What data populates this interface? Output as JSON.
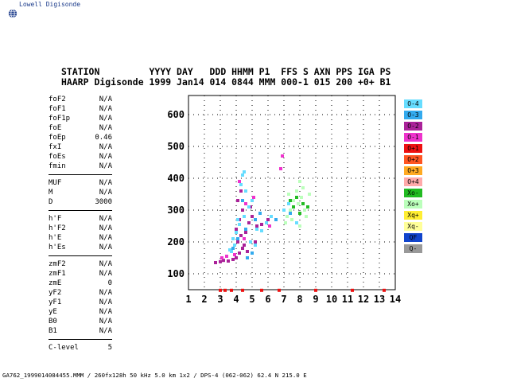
{
  "app": {
    "title": "Lowell Digisonde",
    "logo_icon": "globe-icon"
  },
  "header": {
    "line1": "STATION         YYYY DAY   DDD HHMM P1  FFS S AXN PPS IGA PS",
    "line2": "HAARP Digisonde 1999 Jan14 014 0844 MMM 000-1 015 200 +0+ B1"
  },
  "params": [
    {
      "name": "foF2",
      "value": "N/A"
    },
    {
      "name": "foF1",
      "value": "N/A"
    },
    {
      "name": "foF1p",
      "value": "N/A"
    },
    {
      "name": "foE",
      "value": "N/A"
    },
    {
      "name": "foEp",
      "value": "0.46"
    },
    {
      "name": "fxI",
      "value": "N/A"
    },
    {
      "name": "foEs",
      "value": "N/A"
    },
    {
      "name": "fmin",
      "value": "N/A"
    },
    {
      "sep": true
    },
    {
      "name": "MUF",
      "value": "N/A"
    },
    {
      "name": "M",
      "value": "N/A"
    },
    {
      "name": "D",
      "value": "3000"
    },
    {
      "sep": true
    },
    {
      "name": "h'F",
      "value": "N/A"
    },
    {
      "name": "h'F2",
      "value": "N/A"
    },
    {
      "name": "h'E",
      "value": "N/A"
    },
    {
      "name": "h'Es",
      "value": "N/A"
    },
    {
      "sep": true
    },
    {
      "name": "zmF2",
      "value": "N/A"
    },
    {
      "name": "zmF1",
      "value": "N/A"
    },
    {
      "name": "zmE",
      "value": "0"
    },
    {
      "name": "yF2",
      "value": "N/A"
    },
    {
      "name": "yF1",
      "value": "N/A"
    },
    {
      "name": "yE",
      "value": "N/A"
    },
    {
      "name": "B0",
      "value": "N/A"
    },
    {
      "name": "B1",
      "value": "N/A"
    },
    {
      "sep": true
    },
    {
      "name": "C-level",
      "value": "5"
    }
  ],
  "legend": [
    {
      "label": "O-4",
      "color": "#66ddff"
    },
    {
      "label": "O-3",
      "color": "#33aaee"
    },
    {
      "label": "O-2",
      "color": "#aa2299"
    },
    {
      "label": "O-1",
      "color": "#ee33cc"
    },
    {
      "label": "O+1",
      "color": "#ee1111"
    },
    {
      "label": "O+2",
      "color": "#ff5522"
    },
    {
      "label": "O+3",
      "color": "#ffaa22"
    },
    {
      "label": "O+4",
      "color": "#ffaaaa"
    },
    {
      "label": "Xo-",
      "color": "#22bb22"
    },
    {
      "label": "Xo+",
      "color": "#bbffbb"
    },
    {
      "label": "Xq+",
      "color": "#ffee33"
    },
    {
      "label": "Xq-",
      "color": "#ffff99"
    },
    {
      "label": "QF",
      "color": "#1144cc"
    },
    {
      "label": "Q-",
      "color": "#999999"
    }
  ],
  "footer": "GA762_1999014084455.MMM / 260fx128h 50 kHz 5.0 km 1x2 / DPS-4 (062-062) 62.4 N 215.0 E",
  "chart_data": {
    "type": "scatter",
    "xlim": [
      1,
      14
    ],
    "ylim": [
      50,
      660
    ],
    "xticks": [
      "1",
      "2",
      "3",
      "4",
      "5",
      "6",
      "7",
      "8",
      "9",
      "10",
      "11",
      "12",
      "13",
      "14"
    ],
    "yticks": [
      "100",
      "200",
      "300",
      "400",
      "500",
      "600"
    ],
    "grid": true,
    "series": [
      {
        "color": "#ee1111",
        "points": [
          [
            3.0,
            48
          ],
          [
            3.3,
            48
          ],
          [
            3.7,
            48
          ],
          [
            4.4,
            48
          ],
          [
            5.6,
            48
          ],
          [
            6.7,
            48
          ],
          [
            9.0,
            48
          ],
          [
            11.3,
            48
          ],
          [
            13.3,
            48
          ]
        ]
      },
      {
        "color": "#aa2299",
        "points": [
          [
            2.7,
            135
          ],
          [
            3.0,
            138
          ],
          [
            3.2,
            142
          ],
          [
            3.5,
            140
          ],
          [
            3.8,
            145
          ],
          [
            4.0,
            150
          ],
          [
            4.2,
            165
          ],
          [
            4.4,
            180
          ],
          [
            4.1,
            200
          ],
          [
            4.3,
            220
          ],
          [
            4.0,
            240
          ],
          [
            4.2,
            270
          ],
          [
            4.4,
            300
          ],
          [
            4.1,
            330
          ],
          [
            4.3,
            360
          ],
          [
            4.6,
            230
          ],
          [
            4.8,
            260
          ],
          [
            5.0,
            280
          ],
          [
            5.3,
            250
          ],
          [
            4.9,
            310
          ],
          [
            5.6,
            255
          ],
          [
            6.0,
            270
          ],
          [
            4.5,
            190
          ],
          [
            4.7,
            170
          ],
          [
            5.2,
            200
          ]
        ]
      },
      {
        "color": "#ee33cc",
        "points": [
          [
            3.1,
            150
          ],
          [
            3.4,
            155
          ],
          [
            3.9,
            160
          ],
          [
            4.5,
            210
          ],
          [
            4.6,
            320
          ],
          [
            5.1,
            340
          ],
          [
            4.2,
            390
          ],
          [
            6.1,
            250
          ],
          [
            6.9,
            470
          ],
          [
            6.8,
            430
          ]
        ]
      },
      {
        "color": "#66ddff",
        "points": [
          [
            3.7,
            170
          ],
          [
            3.9,
            190
          ],
          [
            3.8,
            210
          ],
          [
            4.0,
            230
          ],
          [
            4.2,
            255
          ],
          [
            4.5,
            280
          ],
          [
            4.8,
            310
          ],
          [
            5.0,
            330
          ],
          [
            4.6,
            360
          ],
          [
            4.3,
            380
          ],
          [
            4.4,
            410
          ],
          [
            4.5,
            420
          ],
          [
            5.3,
            240
          ],
          [
            5.6,
            235
          ],
          [
            5.9,
            260
          ],
          [
            6.2,
            280
          ],
          [
            7.0,
            300
          ],
          [
            7.3,
            320
          ],
          [
            7.8,
            260
          ],
          [
            4.9,
            200
          ],
          [
            5.2,
            190
          ],
          [
            4.1,
            270
          ],
          [
            3.6,
            175
          ]
        ]
      },
      {
        "color": "#33aaee",
        "points": [
          [
            3.8,
            180
          ],
          [
            4.1,
            210
          ],
          [
            4.6,
            240
          ],
          [
            5.2,
            270
          ],
          [
            4.4,
            330
          ],
          [
            5.5,
            290
          ],
          [
            6.5,
            270
          ],
          [
            7.4,
            290
          ],
          [
            4.7,
            150
          ],
          [
            5.0,
            165
          ]
        ]
      },
      {
        "color": "#bbffbb",
        "points": [
          [
            7.2,
            280
          ],
          [
            7.4,
            300
          ],
          [
            7.6,
            330
          ],
          [
            7.8,
            360
          ],
          [
            8.0,
            390
          ],
          [
            8.2,
            370
          ],
          [
            7.9,
            320
          ],
          [
            8.3,
            300
          ],
          [
            7.1,
            260
          ],
          [
            7.5,
            270
          ],
          [
            8.1,
            340
          ],
          [
            8.4,
            280
          ],
          [
            8.6,
            350
          ],
          [
            7.3,
            350
          ],
          [
            8.0,
            250
          ]
        ]
      },
      {
        "color": "#22bb22",
        "points": [
          [
            7.6,
            310
          ],
          [
            8.0,
            290
          ],
          [
            7.8,
            340
          ],
          [
            8.2,
            320
          ],
          [
            7.4,
            330
          ],
          [
            8.5,
            310
          ]
        ]
      }
    ]
  }
}
